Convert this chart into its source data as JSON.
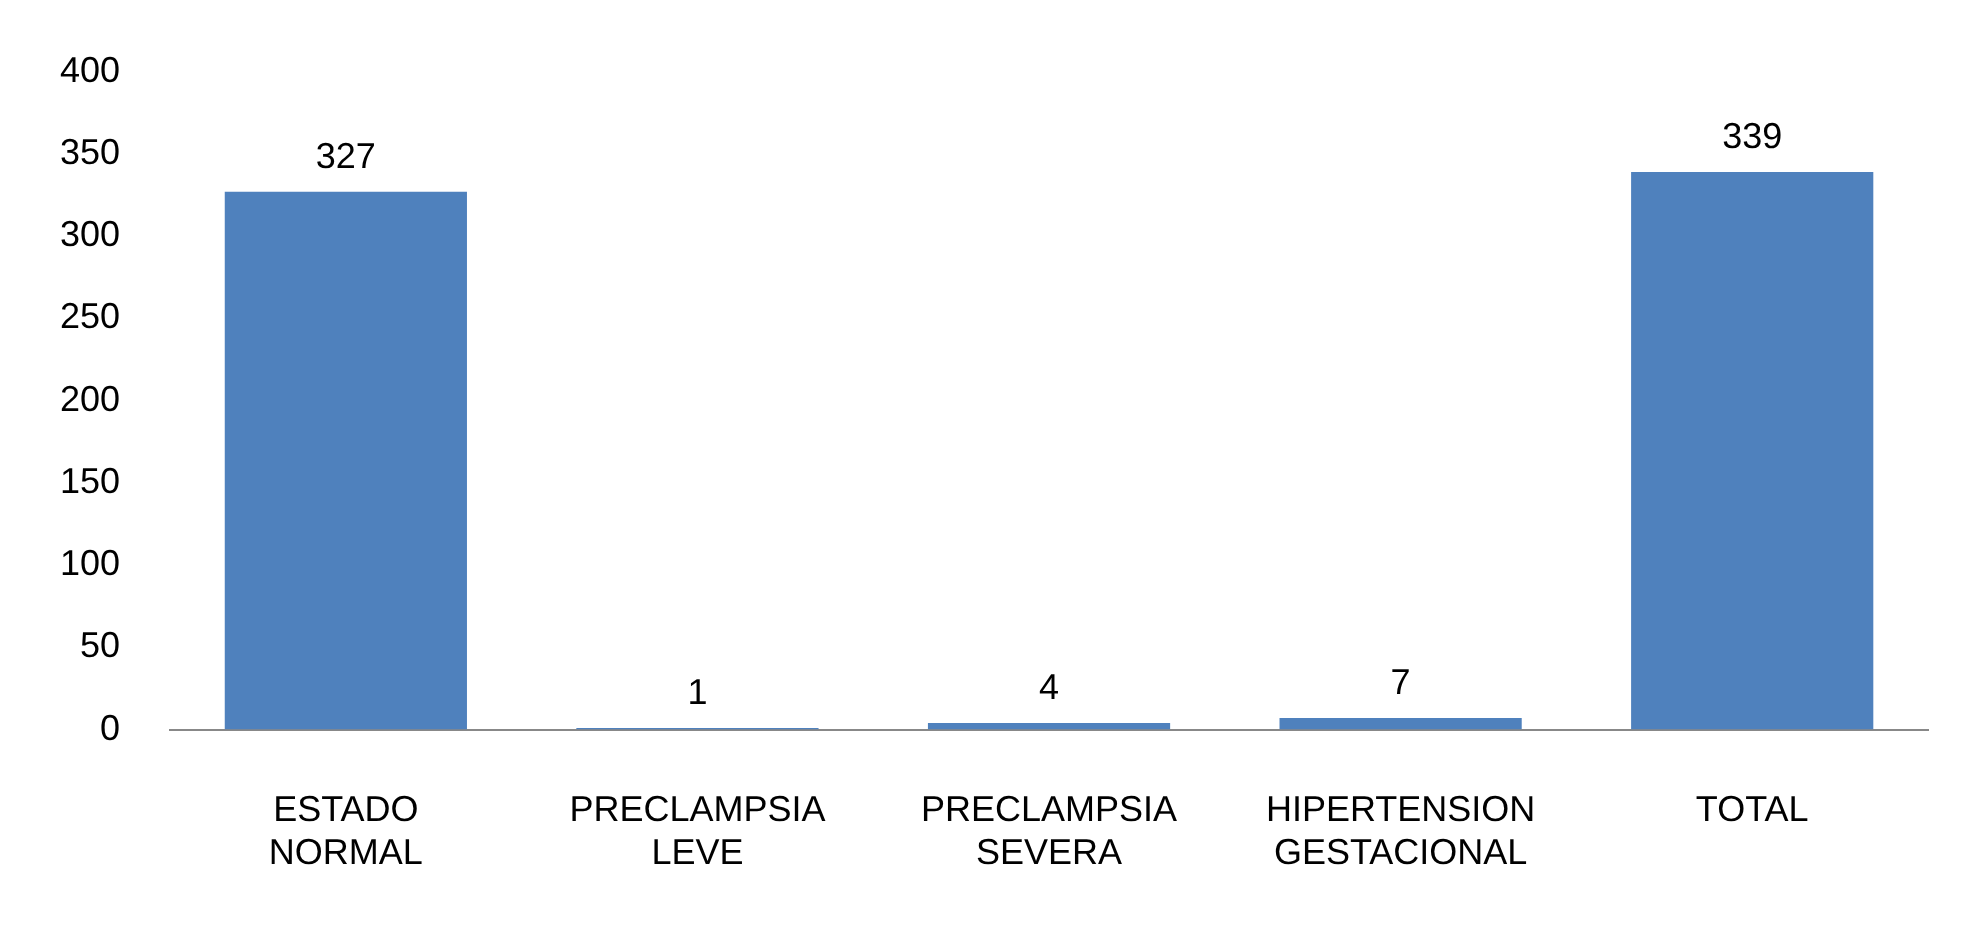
{
  "chart_data": {
    "type": "bar",
    "categories": [
      "ESTADO NORMAL",
      "PRECLAMPSIA LEVE",
      "PRECLAMPSIA SEVERA",
      "HIPERTENSION GESTACIONAL",
      "TOTAL"
    ],
    "values": [
      327,
      1,
      4,
      7,
      339
    ],
    "color": "#4f81bd",
    "ylim": [
      0,
      400
    ],
    "yticks": [
      0,
      50,
      100,
      150,
      200,
      250,
      300,
      350,
      400
    ],
    "grid": false,
    "legend": false,
    "data_labels": true
  }
}
